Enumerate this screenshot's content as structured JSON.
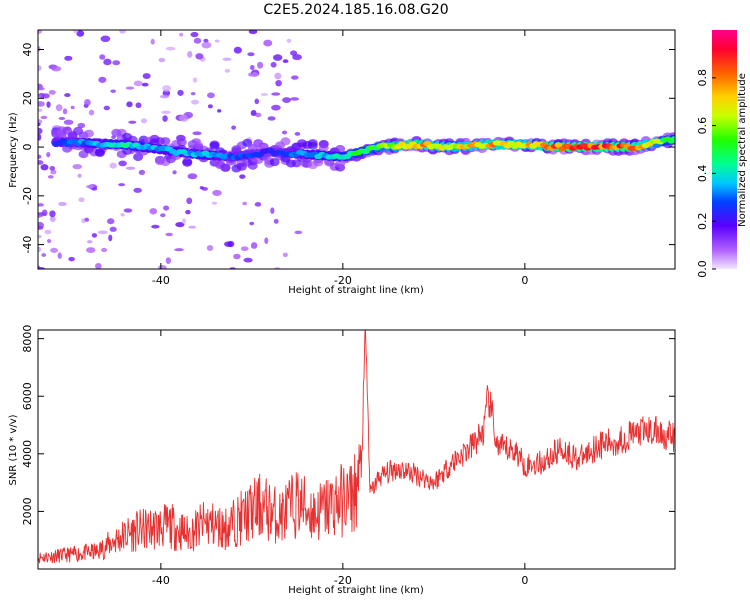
{
  "figure": {
    "title": "C2E5.2024.185.16.08.G20"
  },
  "chart_data": [
    {
      "type": "heatmap",
      "xlabel": "Height of straight line (km)",
      "ylabel": "Frequency (Hz)",
      "xlim": [
        -53.5,
        16.5
      ],
      "ylim": [
        -50,
        48
      ],
      "xticks": [
        -40,
        -20,
        0
      ],
      "yticks": [
        -40,
        -20,
        0,
        20,
        40
      ],
      "colorbar": {
        "label": "Normalized spectral amplitude",
        "range": [
          0.0,
          1.0
        ],
        "ticks": [
          0.0,
          0.2,
          0.4,
          0.6,
          0.8
        ],
        "colormap": "gist_rainbow"
      },
      "ridge": {
        "description_points_x": [
          -50,
          -44,
          -40,
          -36,
          -32,
          -28,
          -24,
          -20,
          -16,
          -12,
          -8,
          -4,
          0,
          4,
          8,
          12,
          16
        ],
        "frequency_hz": [
          2,
          1,
          -1,
          -3,
          -4,
          -2,
          -3,
          -4,
          0,
          1,
          0,
          1,
          1,
          0,
          0,
          0,
          3
        ],
        "amplitude": [
          0.3,
          0.45,
          0.35,
          0.4,
          0.3,
          0.25,
          0.35,
          0.45,
          0.6,
          0.85,
          0.7,
          0.8,
          0.75,
          0.9,
          0.9,
          0.88,
          0.5
        ]
      }
    },
    {
      "type": "line",
      "xlabel": "Height of straight line (km)",
      "ylabel": "SNR (10 * v/v)",
      "xlim": [
        -53.5,
        16.5
      ],
      "ylim": [
        0,
        8300
      ],
      "xticks": [
        -40,
        -20,
        0
      ],
      "yticks": [
        2000,
        4000,
        6000,
        8000
      ],
      "series": [
        {
          "color": "#e83030",
          "x": [
            -53.5,
            -50,
            -47,
            -45,
            -43,
            -41,
            -39,
            -37,
            -35,
            -33,
            -31,
            -29,
            -27,
            -25,
            -23,
            -21,
            -19,
            -18,
            -17.5,
            -17,
            -16,
            -14,
            -12,
            -10,
            -8,
            -6,
            -4.5,
            -4,
            -3,
            -1,
            0,
            2,
            4,
            6,
            8,
            10,
            12,
            14,
            16,
            16.5
          ],
          "values": [
            400,
            500,
            600,
            1000,
            1300,
            1400,
            1500,
            1200,
            1600,
            1400,
            1800,
            2200,
            1800,
            2300,
            1900,
            2300,
            2500,
            3200,
            8200,
            2600,
            3200,
            3500,
            3300,
            3000,
            3700,
            4200,
            4800,
            6000,
            4200,
            4100,
            3600,
            3700,
            4200,
            3800,
            4300,
            4400,
            4700,
            4800,
            4600,
            4500
          ]
        }
      ]
    }
  ]
}
